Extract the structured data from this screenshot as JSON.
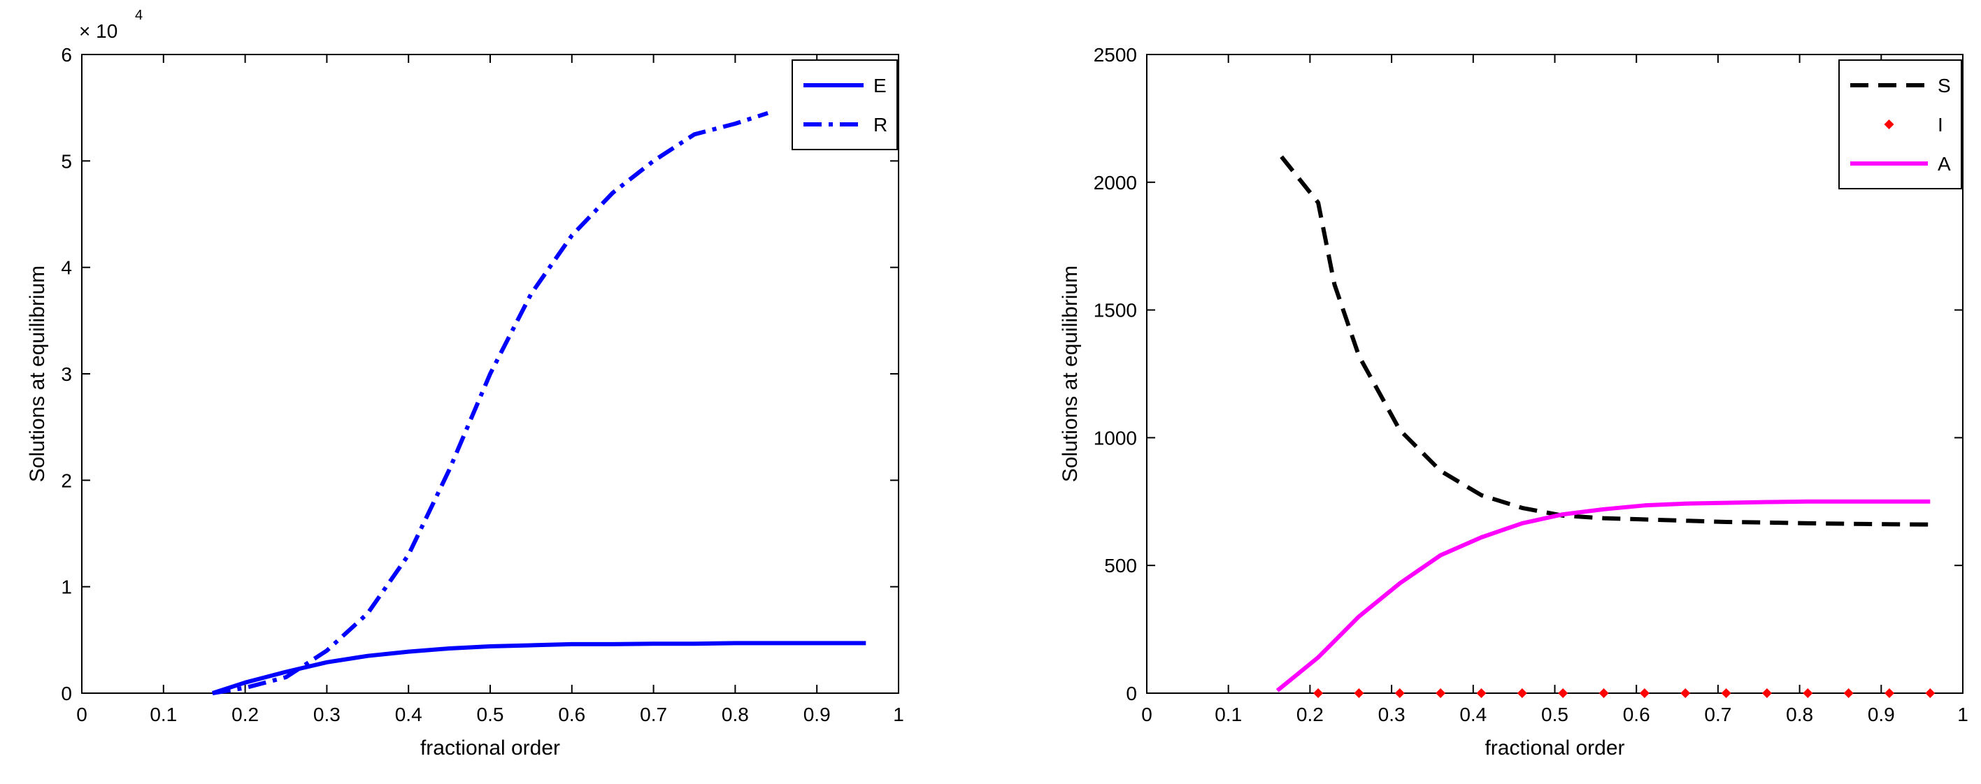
{
  "chart_data": [
    {
      "type": "line",
      "xlabel": "fractional order",
      "ylabel": "Solutions at equilibrium",
      "xlim": [
        0,
        1
      ],
      "ylim": [
        0,
        60000
      ],
      "xticks": [
        "0",
        "0.1",
        "0.2",
        "0.3",
        "0.4",
        "0.5",
        "0.6",
        "0.7",
        "0.8",
        "0.9",
        "1"
      ],
      "yticks": [
        "0",
        "1",
        "2",
        "3",
        "4",
        "5",
        "6"
      ],
      "y_exponent_label": "× 10",
      "y_exponent_power": "4",
      "grid": false,
      "legend_position": "top-right",
      "series": [
        {
          "name": "E",
          "color": "#0000ff",
          "style": "solid",
          "x": [
            0.16,
            0.2,
            0.25,
            0.3,
            0.35,
            0.4,
            0.45,
            0.5,
            0.55,
            0.6,
            0.65,
            0.7,
            0.75,
            0.8,
            0.85,
            0.9,
            0.96
          ],
          "y": [
            0,
            1000,
            2000,
            2900,
            3500,
            3900,
            4200,
            4400,
            4500,
            4600,
            4600,
            4650,
            4650,
            4700,
            4700,
            4700,
            4700
          ]
        },
        {
          "name": "R",
          "color": "#0000ff",
          "style": "dashdot",
          "x": [
            0.16,
            0.2,
            0.25,
            0.3,
            0.35,
            0.4,
            0.45,
            0.5,
            0.55,
            0.6,
            0.65,
            0.7,
            0.75,
            0.8,
            0.84
          ],
          "y": [
            0,
            500,
            1500,
            4000,
            7500,
            13000,
            21000,
            30000,
            37500,
            43000,
            47000,
            50000,
            52500,
            53500,
            54500
          ]
        }
      ]
    },
    {
      "type": "line",
      "xlabel": "fractional order",
      "ylabel": "Solutions at equilibrium",
      "xlim": [
        0,
        1
      ],
      "ylim": [
        0,
        2500
      ],
      "xticks": [
        "0",
        "0.1",
        "0.2",
        "0.3",
        "0.4",
        "0.5",
        "0.6",
        "0.7",
        "0.8",
        "0.9",
        "1"
      ],
      "yticks": [
        "0",
        "500",
        "1000",
        "1500",
        "2000",
        "2500"
      ],
      "grid": false,
      "legend_position": "top-right",
      "series": [
        {
          "name": "S",
          "color": "#000000",
          "style": "dashed",
          "x": [
            0.165,
            0.21,
            0.23,
            0.26,
            0.31,
            0.36,
            0.41,
            0.46,
            0.51,
            0.56,
            0.61,
            0.66,
            0.71,
            0.76,
            0.81,
            0.86,
            0.91,
            0.96
          ],
          "y": [
            2100,
            1920,
            1600,
            1320,
            1030,
            870,
            775,
            725,
            695,
            685,
            680,
            675,
            670,
            668,
            665,
            663,
            661,
            660
          ]
        },
        {
          "name": "I",
          "color": "#ff0000",
          "style": "markers",
          "x": [
            0.21,
            0.26,
            0.31,
            0.36,
            0.41,
            0.46,
            0.51,
            0.56,
            0.61,
            0.66,
            0.71,
            0.76,
            0.81,
            0.86,
            0.91,
            0.96
          ],
          "y": [
            0,
            0,
            0,
            0,
            0,
            0,
            0,
            0,
            0,
            0,
            0,
            0,
            0,
            0,
            0,
            0
          ]
        },
        {
          "name": "A",
          "color": "#ff00ff",
          "style": "solid",
          "x": [
            0.16,
            0.21,
            0.26,
            0.31,
            0.36,
            0.41,
            0.46,
            0.51,
            0.56,
            0.61,
            0.66,
            0.71,
            0.76,
            0.81,
            0.86,
            0.91,
            0.96
          ],
          "y": [
            10,
            140,
            300,
            430,
            540,
            610,
            665,
            700,
            720,
            735,
            742,
            745,
            748,
            750,
            750,
            750,
            750
          ]
        }
      ]
    }
  ]
}
